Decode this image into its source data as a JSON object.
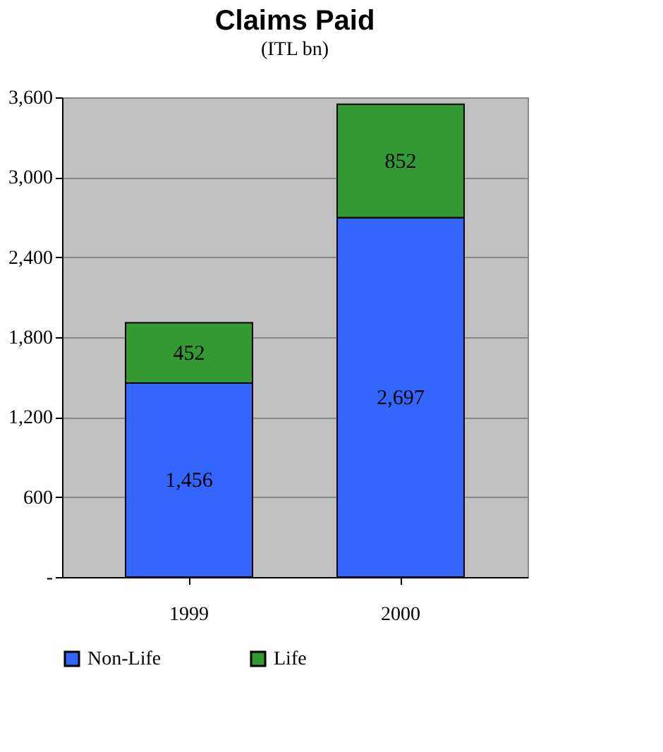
{
  "chart_data": {
    "type": "bar",
    "title": "Claims Paid",
    "subtitle": "(ITL bn)",
    "categories": [
      "1999",
      "2000"
    ],
    "stacked": true,
    "series": [
      {
        "name": "Non-Life",
        "color": "#3366ff",
        "values": [
          1456,
          2697
        ],
        "value_labels": [
          "1,456",
          "2,697"
        ]
      },
      {
        "name": "Life",
        "color": "#339933",
        "values": [
          452,
          852
        ],
        "value_labels": [
          "452",
          "852"
        ]
      }
    ],
    "ylim": [
      0,
      3600
    ],
    "yticks": [
      {
        "value": 0,
        "label": "-"
      },
      600,
      {
        "value": 1200,
        "label": "1,200"
      },
      {
        "value": 1800,
        "label": "1,800"
      },
      {
        "value": 2400,
        "label": "2,400"
      },
      {
        "value": 3000,
        "label": "3,000"
      },
      {
        "value": 3600,
        "label": "3,600"
      }
    ],
    "grid": "y",
    "legend": "bottom"
  }
}
